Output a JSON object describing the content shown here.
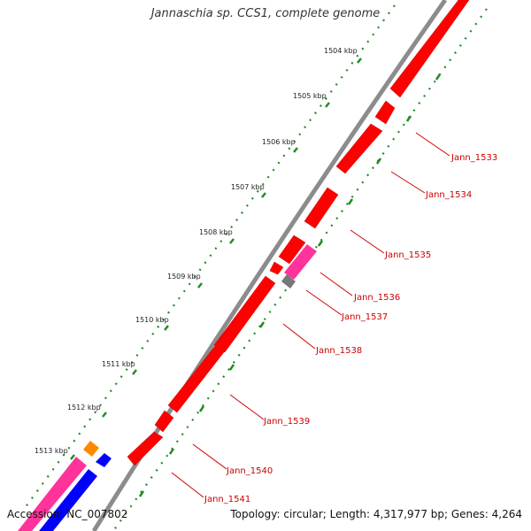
{
  "title": "Jannaschia sp. CCS1, complete genome",
  "footer": {
    "accession": "Accession: NC_007802",
    "summary": "Topology: circular; Length: 4,317,977 bp; Genes: 4,264"
  },
  "colors": {
    "backbone": "#8c8c8c",
    "gene": "#ff0000",
    "gene_pink": "#ff3399",
    "gene_grey": "#777777",
    "gene_orange": "#ff8800",
    "gene_blue": "#0000ff",
    "ticks": "#228b22",
    "label": "#cc0000"
  },
  "scale_labels": [
    "1504 kbp",
    "1505 kbp",
    "1506 kbp",
    "1507 kbp",
    "1508 kbp",
    "1509 kbp",
    "1510 kbp",
    "1511 kbp",
    "1512 kbp",
    "1513 kbp"
  ],
  "gene_labels": [
    "Jann_1533",
    "Jann_1534",
    "Jann_1535",
    "Jann_1536",
    "Jann_1537",
    "Jann_1538",
    "Jann_1539",
    "Jann_1540",
    "Jann_1541"
  ]
}
